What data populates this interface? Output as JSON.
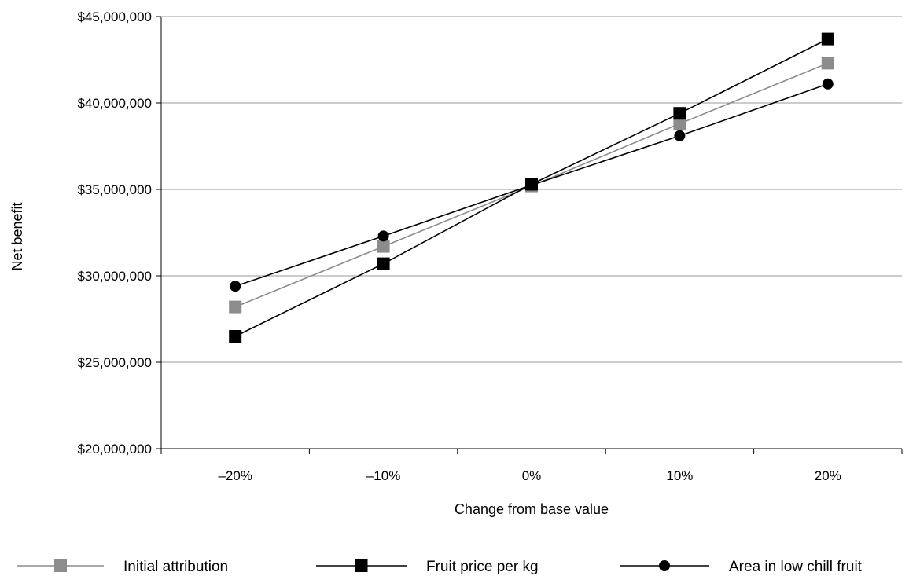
{
  "chart_data": {
    "type": "line",
    "title": "",
    "xlabel": "Change from base value",
    "ylabel": "Net benefit",
    "categories": [
      "–20%",
      "–10%",
      "0%",
      "10%",
      "20%"
    ],
    "ylim": [
      20000000,
      45000000
    ],
    "yticks": [
      20000000,
      25000000,
      30000000,
      35000000,
      40000000,
      45000000
    ],
    "ytick_labels": [
      "$20,000,000",
      "$25,000,000",
      "$30,000,000",
      "$35,000,000",
      "$40,000,000",
      "$45,000,000"
    ],
    "grid": "horizontal",
    "legend_position": "bottom",
    "series": [
      {
        "name": "Initial attribution",
        "marker": "square",
        "color": "#8c8c8c",
        "values": [
          28200000,
          31700000,
          35200000,
          38800000,
          42300000
        ]
      },
      {
        "name": "Fruit price per kg",
        "marker": "square",
        "color": "#000000",
        "values": [
          26500000,
          30700000,
          35300000,
          39400000,
          43700000
        ]
      },
      {
        "name": "Area in low chill fruit",
        "marker": "circle",
        "color": "#000000",
        "values": [
          29400000,
          32300000,
          35250000,
          38100000,
          41100000
        ]
      }
    ]
  }
}
